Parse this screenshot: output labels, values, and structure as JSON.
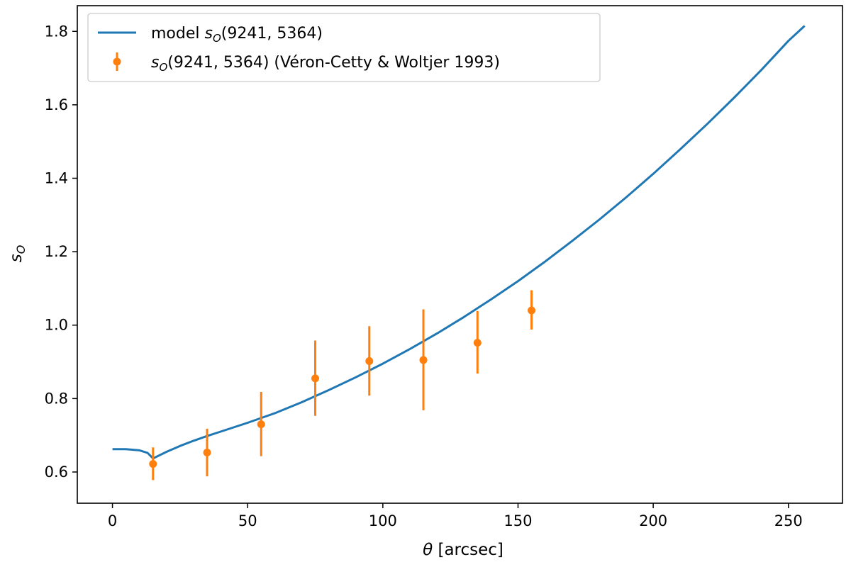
{
  "chart_data": {
    "type": "line",
    "xlabel_symbol": "θ",
    "xlabel_unit": " [arcsec]",
    "ylabel": "s",
    "ylabel_sub": "O",
    "xlim": [
      -13,
      270
    ],
    "ylim": [
      0.515,
      1.87
    ],
    "x_ticks": [
      0,
      50,
      100,
      150,
      200,
      250
    ],
    "y_ticks": [
      0.6,
      0.8,
      1.0,
      1.2,
      1.4,
      1.6,
      1.8
    ],
    "legend_position": "top-left",
    "series": [
      {
        "name_prefix": "model ",
        "name_symbol": "s",
        "name_sub": "O",
        "name_args": "(9241, 5364)",
        "kind": "line",
        "color": "#1f77b4",
        "x": [
          0,
          5,
          10,
          13,
          15,
          20,
          25,
          30,
          35,
          40,
          50,
          60,
          70,
          80,
          90,
          100,
          110,
          120,
          130,
          140,
          150,
          160,
          170,
          180,
          190,
          200,
          210,
          220,
          230,
          240,
          250,
          256
        ],
        "y": [
          0.662,
          0.662,
          0.659,
          0.652,
          0.637,
          0.655,
          0.671,
          0.685,
          0.698,
          0.71,
          0.734,
          0.76,
          0.79,
          0.823,
          0.858,
          0.895,
          0.935,
          0.977,
          1.022,
          1.07,
          1.12,
          1.173,
          1.229,
          1.287,
          1.348,
          1.412,
          1.479,
          1.548,
          1.62,
          1.695,
          1.774,
          1.815
        ]
      },
      {
        "name_symbol": "s",
        "name_sub": "O",
        "name_args": "(9241, 5364)",
        "name_suffix": " (Véron-Cetty & Woltjer 1993)",
        "kind": "errorbar",
        "color": "#ff7f0e",
        "x": [
          15,
          35,
          55,
          75,
          95,
          115,
          135,
          155
        ],
        "y": [
          0.622,
          0.653,
          0.73,
          0.855,
          0.902,
          0.905,
          0.952,
          1.04
        ],
        "y_low": [
          0.578,
          0.588,
          0.643,
          0.753,
          0.808,
          0.768,
          0.868,
          0.988
        ],
        "y_high": [
          0.667,
          0.718,
          0.818,
          0.958,
          0.997,
          1.043,
          1.038,
          1.095
        ]
      }
    ]
  }
}
